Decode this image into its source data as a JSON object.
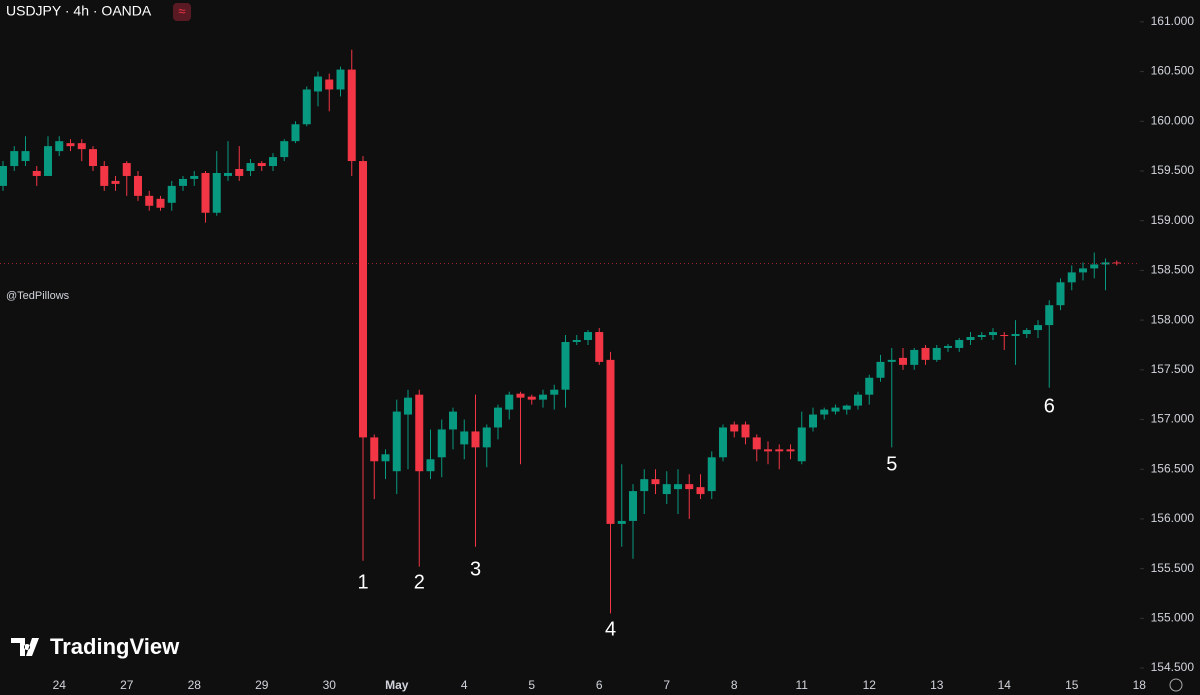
{
  "chart_data": {
    "type": "candlestick",
    "title": "USDJPY · 4h · OANDA",
    "watermark": "@TedPillows",
    "brand": "TradingView",
    "up_color": "#089981",
    "down_color": "#f23645",
    "categories": [
      null,
      null,
      null,
      null,
      null,
      "24",
      null,
      null,
      null,
      null,
      null,
      "27",
      null,
      null,
      null,
      null,
      null,
      "28",
      null,
      null,
      null,
      null,
      null,
      "29",
      null,
      null,
      null,
      null,
      null,
      "30",
      null,
      null,
      null,
      null,
      null,
      "May",
      null,
      null,
      null,
      null,
      null,
      "4",
      null,
      null,
      null,
      null,
      null,
      "5",
      null,
      null,
      null,
      null,
      null,
      "6",
      null,
      null,
      null,
      null,
      null,
      "7",
      null,
      null,
      null,
      null,
      null,
      "8",
      null,
      null,
      null,
      null,
      null,
      "11",
      null,
      null,
      null,
      null,
      null,
      "12",
      null,
      null,
      null,
      null,
      null,
      "13",
      null,
      null,
      null,
      null,
      null,
      "14",
      null,
      null,
      null,
      null,
      null,
      "15",
      null,
      null,
      null,
      null,
      null,
      "18"
    ],
    "open": [
      159.35,
      159.55,
      159.6,
      159.5,
      159.45,
      159.7,
      159.78,
      159.78,
      159.72,
      159.55,
      159.4,
      159.58,
      159.45,
      159.25,
      159.22,
      159.18,
      159.35,
      159.42,
      159.48,
      159.08,
      159.45,
      159.52,
      159.5,
      159.58,
      159.55,
      159.64,
      159.8,
      159.97,
      160.3,
      160.42,
      160.32,
      160.52,
      159.6,
      156.82,
      156.58,
      156.48,
      157.05,
      157.25,
      156.48,
      156.62,
      156.9,
      156.75,
      156.88,
      156.72,
      156.92,
      157.1,
      157.26,
      157.23,
      157.2,
      157.25,
      157.3,
      157.78,
      157.8,
      157.88,
      157.6,
      155.95,
      155.98,
      156.28,
      156.4,
      156.25,
      156.3,
      156.35,
      156.32,
      156.28,
      156.62,
      156.95,
      156.95,
      156.82,
      156.7,
      156.7,
      156.7,
      156.58,
      156.92,
      157.05,
      157.08,
      157.1,
      157.14,
      157.25,
      157.42,
      157.58,
      157.62,
      157.55,
      157.72,
      157.6,
      157.72,
      157.72,
      157.8,
      157.83,
      157.85,
      157.85,
      157.84,
      157.86,
      157.9,
      157.95,
      158.15,
      158.38,
      158.48,
      158.52,
      158.56,
      158.58,
      null,
      null
    ],
    "high": [
      159.6,
      159.75,
      159.85,
      159.55,
      159.85,
      159.85,
      159.82,
      159.82,
      159.75,
      159.6,
      159.45,
      159.6,
      159.5,
      159.3,
      159.25,
      159.4,
      159.45,
      159.5,
      159.5,
      159.7,
      159.8,
      159.75,
      159.62,
      159.6,
      159.68,
      159.82,
      160.0,
      160.35,
      160.5,
      160.48,
      160.55,
      160.72,
      159.65,
      156.85,
      156.7,
      157.2,
      157.3,
      157.3,
      156.9,
      157.0,
      157.12,
      157.0,
      157.25,
      156.95,
      157.15,
      157.28,
      157.28,
      157.25,
      157.3,
      157.35,
      157.85,
      157.85,
      157.9,
      157.92,
      157.68,
      156.55,
      156.35,
      156.5,
      156.5,
      156.48,
      156.5,
      156.45,
      156.45,
      156.68,
      156.95,
      156.98,
      156.98,
      156.85,
      156.78,
      156.75,
      156.75,
      157.08,
      157.12,
      157.12,
      157.15,
      157.15,
      157.28,
      157.45,
      157.65,
      157.72,
      157.72,
      157.72,
      157.75,
      157.75,
      157.76,
      157.82,
      157.88,
      157.88,
      157.92,
      157.88,
      158.0,
      157.92,
      158.0,
      158.2,
      158.42,
      158.55,
      158.58,
      158.68,
      158.62,
      158.6,
      null,
      null
    ],
    "low": [
      159.3,
      159.5,
      159.55,
      159.35,
      159.45,
      159.65,
      159.7,
      159.6,
      159.5,
      159.3,
      159.3,
      159.25,
      159.2,
      159.1,
      159.1,
      159.1,
      159.3,
      159.35,
      158.98,
      159.05,
      159.4,
      159.4,
      159.45,
      159.5,
      159.5,
      159.6,
      159.78,
      159.95,
      160.15,
      160.1,
      160.25,
      159.45,
      155.58,
      156.2,
      156.4,
      156.25,
      156.5,
      155.52,
      156.4,
      156.42,
      156.7,
      156.6,
      155.72,
      156.52,
      156.8,
      157.0,
      156.55,
      157.15,
      157.12,
      157.1,
      157.12,
      157.75,
      157.75,
      157.55,
      155.05,
      155.72,
      155.6,
      156.05,
      156.25,
      156.15,
      156.05,
      156.0,
      156.2,
      156.2,
      156.58,
      156.82,
      156.75,
      156.58,
      156.55,
      156.5,
      156.6,
      156.55,
      156.88,
      157.0,
      157.05,
      157.05,
      157.1,
      157.15,
      157.38,
      156.72,
      157.5,
      157.5,
      157.55,
      157.58,
      157.68,
      157.68,
      157.75,
      157.8,
      157.8,
      157.7,
      157.55,
      157.82,
      157.82,
      157.32,
      158.1,
      158.3,
      158.4,
      158.42,
      158.3,
      158.55,
      null,
      null
    ],
    "close": [
      159.55,
      159.7,
      159.7,
      159.45,
      159.75,
      159.8,
      159.75,
      159.72,
      159.55,
      159.35,
      159.37,
      159.45,
      159.25,
      159.15,
      159.13,
      159.35,
      159.42,
      159.45,
      159.08,
      159.48,
      159.48,
      159.45,
      159.58,
      159.55,
      159.64,
      159.8,
      159.97,
      160.32,
      160.45,
      160.32,
      160.52,
      159.6,
      156.82,
      156.58,
      156.65,
      157.08,
      157.22,
      156.48,
      156.6,
      156.9,
      157.08,
      156.88,
      156.72,
      156.92,
      157.12,
      157.25,
      157.22,
      157.2,
      157.25,
      157.3,
      157.78,
      157.8,
      157.88,
      157.58,
      155.95,
      155.98,
      156.28,
      156.4,
      156.35,
      156.35,
      156.35,
      156.3,
      156.25,
      156.62,
      156.92,
      156.88,
      156.82,
      156.7,
      156.68,
      156.68,
      156.68,
      156.92,
      157.05,
      157.1,
      157.12,
      157.14,
      157.25,
      157.42,
      157.58,
      157.6,
      157.55,
      157.7,
      157.6,
      157.72,
      157.74,
      157.8,
      157.83,
      157.85,
      157.88,
      157.84,
      157.86,
      157.9,
      157.95,
      158.15,
      158.38,
      158.48,
      158.52,
      158.56,
      158.58,
      158.57,
      null,
      null
    ],
    "annotations": [
      {
        "text": "1"
      },
      {
        "text": "2"
      },
      {
        "text": "3"
      },
      {
        "text": "4"
      },
      {
        "text": "5"
      },
      {
        "text": "6"
      }
    ],
    "ylim": [
      154.4,
      161.22
    ],
    "yticks": [
      {
        "value": 154.5,
        "label": "154.500"
      },
      {
        "value": 155,
        "label": "155.000"
      },
      {
        "value": 155.5,
        "label": "155.500"
      },
      {
        "value": 156,
        "label": "156.000"
      },
      {
        "value": 156.5,
        "label": "156.500"
      },
      {
        "value": 157,
        "label": "157.000"
      },
      {
        "value": 157.5,
        "label": "157.500"
      },
      {
        "value": 158,
        "label": "158.000"
      },
      {
        "value": 158.5,
        "label": "158.500"
      },
      {
        "value": 159,
        "label": "159.000"
      },
      {
        "value": 159.5,
        "label": "159.500"
      },
      {
        "value": 160,
        "label": "160.000"
      },
      {
        "value": 160.5,
        "label": "160.500"
      },
      {
        "value": 161,
        "label": "161.000"
      }
    ]
  }
}
